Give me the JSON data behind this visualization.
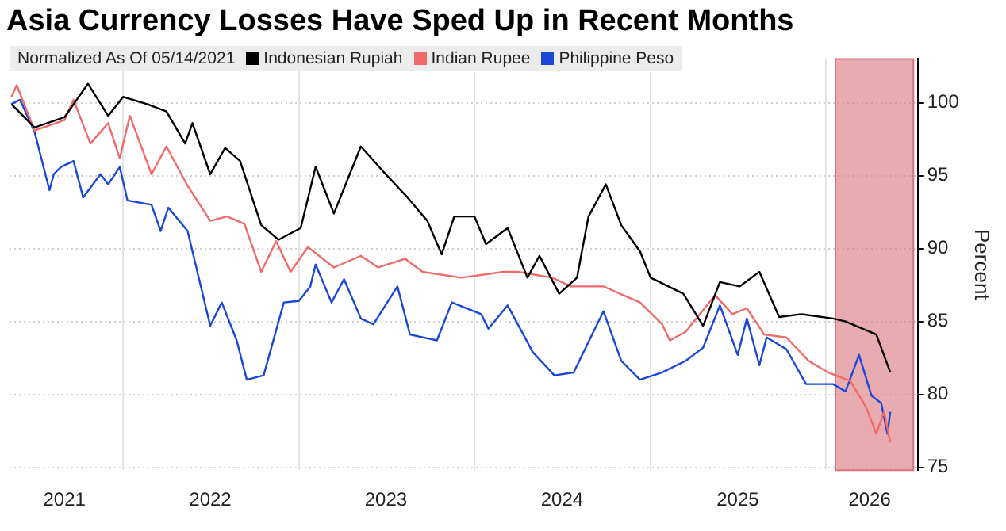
{
  "chart_data": {
    "type": "line",
    "title": "Asia Currency Losses Have Sped Up in Recent Months",
    "legend_title": "Normalized As Of 05/14/2021",
    "ylabel": "Percent",
    "legend": "top left",
    "grid": true,
    "xlim": [
      "2021-05-10",
      "2026-07-10"
    ],
    "xticks": [
      {
        "value": "2021-09-01",
        "label": "2021"
      },
      {
        "value": "2022-01-01",
        "label": null
      },
      {
        "value": "2022-07-01",
        "label": "2022"
      },
      {
        "value": "2023-01-01",
        "label": null
      },
      {
        "value": "2023-07-01",
        "label": "2023"
      },
      {
        "value": "2024-01-01",
        "label": null
      },
      {
        "value": "2024-07-01",
        "label": "2024"
      },
      {
        "value": "2025-01-01",
        "label": null
      },
      {
        "value": "2025-07-01",
        "label": "2025"
      },
      {
        "value": "2026-01-01",
        "label": null
      },
      {
        "value": "2026-04-01",
        "label": "2026"
      }
    ],
    "ylim": [
      74.8,
      103
    ],
    "yticks": [
      75,
      80,
      85,
      90,
      95,
      100
    ],
    "bands": [
      {
        "axis": "x",
        "from": "2026-01-20",
        "to": "2026-07-01",
        "color": "#d9737b"
      }
    ],
    "series": [
      {
        "name": "Indonesian Rupiah",
        "color": "#000000",
        "x": [
          "2021-05-14",
          "2021-07-01",
          "2021-09-01",
          "2021-10-20",
          "2021-12-01",
          "2022-01-01",
          "2022-02-20",
          "2022-04-01",
          "2022-05-10",
          "2022-05-25",
          "2022-07-01",
          "2022-08-01",
          "2022-09-01",
          "2022-10-15",
          "2022-11-20",
          "2023-01-05",
          "2023-02-05",
          "2023-03-15",
          "2023-05-10",
          "2023-06-25",
          "2023-08-15",
          "2023-09-25",
          "2023-10-25",
          "2023-11-20",
          "2024-01-01",
          "2024-01-25",
          "2024-03-10",
          "2024-04-20",
          "2024-05-15",
          "2024-06-25",
          "2024-08-01",
          "2024-08-25",
          "2024-09-30",
          "2024-11-01",
          "2024-12-10",
          "2025-01-01",
          "2025-03-10",
          "2025-04-20",
          "2025-05-25",
          "2025-07-05",
          "2025-08-15",
          "2025-09-25",
          "2025-11-10",
          "2026-01-15",
          "2026-02-10",
          "2026-04-15",
          "2026-05-14"
        ],
        "values": [
          99.9,
          98.3,
          99.0,
          101.3,
          99.1,
          100.4,
          99.9,
          99.4,
          97.2,
          98.6,
          95.1,
          96.9,
          96.0,
          91.6,
          90.6,
          91.4,
          95.6,
          92.4,
          97.0,
          95.3,
          93.5,
          91.9,
          89.6,
          92.2,
          92.2,
          90.3,
          91.4,
          88.0,
          89.5,
          86.9,
          88.0,
          92.2,
          94.4,
          91.6,
          89.8,
          88.0,
          86.9,
          84.7,
          87.7,
          87.4,
          88.4,
          85.3,
          85.5,
          85.2,
          85.0,
          84.1,
          81.5
        ]
      },
      {
        "name": "Indian Rupee",
        "color": "#f06a6a",
        "x": [
          "2021-05-14",
          "2021-05-25",
          "2021-07-01",
          "2021-09-01",
          "2021-09-20",
          "2021-10-25",
          "2021-12-01",
          "2021-12-25",
          "2022-01-15",
          "2022-03-01",
          "2022-04-01",
          "2022-05-15",
          "2022-07-01",
          "2022-08-05",
          "2022-09-10",
          "2022-10-15",
          "2022-11-15",
          "2022-12-15",
          "2023-01-20",
          "2023-03-15",
          "2023-05-10",
          "2023-06-15",
          "2023-08-10",
          "2023-09-15",
          "2023-12-05",
          "2024-03-01",
          "2024-04-01",
          "2024-06-10",
          "2024-07-20",
          "2024-09-25",
          "2024-12-10",
          "2025-01-25",
          "2025-02-10",
          "2025-03-15",
          "2025-05-15",
          "2025-06-20",
          "2025-07-20",
          "2025-08-25",
          "2025-10-10",
          "2025-11-25",
          "2026-01-05",
          "2026-02-20",
          "2026-03-25",
          "2026-04-15",
          "2026-05-01",
          "2026-05-14"
        ],
        "values": [
          100.4,
          101.2,
          98.1,
          98.8,
          100.2,
          97.2,
          98.6,
          96.2,
          99.1,
          95.1,
          97.0,
          94.3,
          91.9,
          92.2,
          91.7,
          88.4,
          90.5,
          88.4,
          90.1,
          88.7,
          89.5,
          88.7,
          89.3,
          88.4,
          88.0,
          88.4,
          88.4,
          88.0,
          87.4,
          87.4,
          86.3,
          84.8,
          83.7,
          84.3,
          86.8,
          85.5,
          85.9,
          84.1,
          83.9,
          82.3,
          81.5,
          80.9,
          79.1,
          77.3,
          78.8,
          76.7
        ]
      },
      {
        "name": "Philippine Peso",
        "color": "#1a47d8",
        "x": [
          "2021-05-14",
          "2021-06-01",
          "2021-07-01",
          "2021-08-01",
          "2021-08-10",
          "2021-08-25",
          "2021-09-20",
          "2021-10-10",
          "2021-11-15",
          "2021-12-01",
          "2021-12-25",
          "2022-01-10",
          "2022-03-01",
          "2022-03-20",
          "2022-04-05",
          "2022-05-15",
          "2022-07-01",
          "2022-07-25",
          "2022-08-25",
          "2022-09-15",
          "2022-10-20",
          "2022-12-01",
          "2023-01-01",
          "2023-01-25",
          "2023-02-05",
          "2023-03-10",
          "2023-04-05",
          "2023-05-10",
          "2023-06-05",
          "2023-07-25",
          "2023-08-20",
          "2023-10-15",
          "2023-11-15",
          "2024-01-15",
          "2024-01-30",
          "2024-03-10",
          "2024-05-01",
          "2024-06-15",
          "2024-07-25",
          "2024-09-25",
          "2024-11-01",
          "2024-12-10",
          "2025-01-25",
          "2025-03-15",
          "2025-04-20",
          "2025-05-25",
          "2025-07-01",
          "2025-07-20",
          "2025-08-15",
          "2025-08-30",
          "2025-10-10",
          "2025-11-20",
          "2026-01-15",
          "2026-02-10",
          "2026-03-10",
          "2026-04-05",
          "2026-04-25",
          "2026-05-08",
          "2026-05-14"
        ],
        "values": [
          99.9,
          100.2,
          98.0,
          94.0,
          95.1,
          95.6,
          96.0,
          93.5,
          95.1,
          94.4,
          95.6,
          93.3,
          93.0,
          91.2,
          92.8,
          91.2,
          84.7,
          86.3,
          83.7,
          81.0,
          81.3,
          86.3,
          86.4,
          87.4,
          88.9,
          86.3,
          87.9,
          85.2,
          84.8,
          87.4,
          84.1,
          83.7,
          86.3,
          85.5,
          84.5,
          86.1,
          82.9,
          81.3,
          81.5,
          85.7,
          82.3,
          81.0,
          81.5,
          82.3,
          83.2,
          86.1,
          82.7,
          85.2,
          82.0,
          83.9,
          83.1,
          80.7,
          80.7,
          80.2,
          82.7,
          79.9,
          79.4,
          77.3,
          78.8
        ]
      }
    ]
  }
}
